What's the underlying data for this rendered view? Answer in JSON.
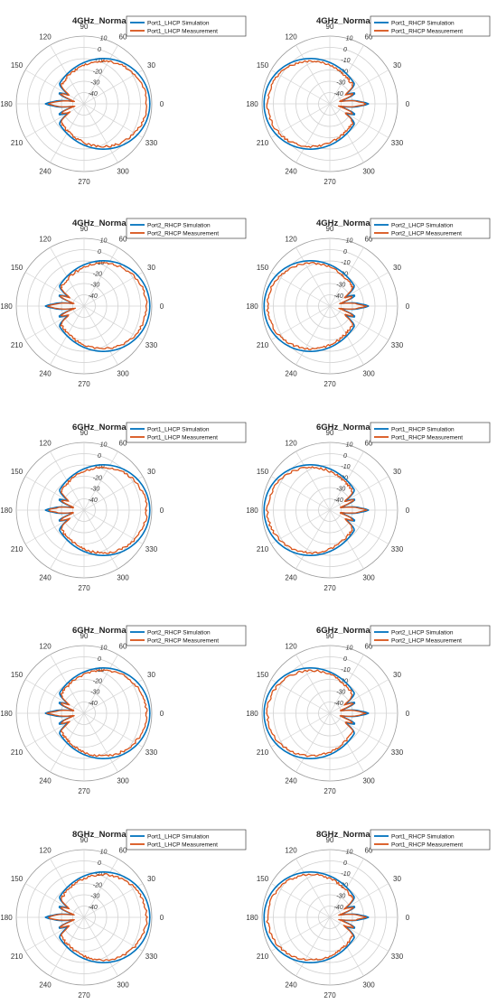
{
  "chart_data": [
    {
      "type": "polar",
      "title": "4GHz_Normalized patterns",
      "angle_ticks": [
        "90",
        "60",
        "30",
        "0",
        "330",
        "300",
        "270",
        "240",
        "210",
        "180",
        "150",
        "120"
      ],
      "r_ticks": [
        "10",
        "0",
        "-10",
        "-20",
        "-30",
        "-40"
      ],
      "rlim": [
        -50,
        10
      ],
      "series": [
        {
          "name": "Port1_LHCP Simulation",
          "color": "#0072BD",
          "shape": "right"
        },
        {
          "name": "Port1_LHCP Measurement",
          "color": "#D95319",
          "shape": "right"
        }
      ]
    },
    {
      "type": "polar",
      "title": "4GHz_Normalized patterns",
      "angle_ticks": [
        "90",
        "60",
        "30",
        "0",
        "330",
        "300",
        "270",
        "240",
        "210",
        "180",
        "150",
        "120"
      ],
      "r_ticks": [
        "10",
        "0",
        "-10",
        "-20",
        "-30",
        "-40"
      ],
      "rlim": [
        -50,
        10
      ],
      "series": [
        {
          "name": "Port1_RHCP Simulation",
          "color": "#0072BD",
          "shape": "left"
        },
        {
          "name": "Port1_RHCP Measurement",
          "color": "#D95319",
          "shape": "left"
        }
      ]
    },
    {
      "type": "polar",
      "title": "4GHz_Normalized patterns",
      "angle_ticks": [
        "90",
        "60",
        "30",
        "0",
        "330",
        "300",
        "270",
        "240",
        "210",
        "180",
        "150",
        "120"
      ],
      "r_ticks": [
        "10",
        "0",
        "-10",
        "-20",
        "-30",
        "-40"
      ],
      "rlim": [
        -50,
        10
      ],
      "series": [
        {
          "name": "Port2_RHCP Simulation",
          "color": "#0072BD",
          "shape": "right"
        },
        {
          "name": "Port2_RHCP Measurement",
          "color": "#D95319",
          "shape": "right"
        }
      ]
    },
    {
      "type": "polar",
      "title": "4GHz_Normalized patterns",
      "angle_ticks": [
        "90",
        "60",
        "30",
        "0",
        "330",
        "300",
        "270",
        "240",
        "210",
        "180",
        "150",
        "120"
      ],
      "r_ticks": [
        "10",
        "0",
        "-10",
        "-20",
        "-30",
        "-40"
      ],
      "rlim": [
        -50,
        10
      ],
      "series": [
        {
          "name": "Port2_LHCP Simulation",
          "color": "#0072BD",
          "shape": "left"
        },
        {
          "name": "Port2_LHCP Measurement",
          "color": "#D95319",
          "shape": "left"
        }
      ]
    },
    {
      "type": "polar",
      "title": "6GHz_Normalized patterns",
      "angle_ticks": [
        "90",
        "60",
        "30",
        "0",
        "330",
        "300",
        "270",
        "240",
        "210",
        "180",
        "150",
        "120"
      ],
      "r_ticks": [
        "10",
        "0",
        "-10",
        "-20",
        "-30",
        "-40"
      ],
      "rlim": [
        -50,
        10
      ],
      "series": [
        {
          "name": "Port1_LHCP Simulation",
          "color": "#0072BD",
          "shape": "right"
        },
        {
          "name": "Port1_LHCP Measurement",
          "color": "#D95319",
          "shape": "right"
        }
      ]
    },
    {
      "type": "polar",
      "title": "6GHz_Normalized patterns",
      "angle_ticks": [
        "90",
        "60",
        "30",
        "0",
        "330",
        "300",
        "270",
        "240",
        "210",
        "180",
        "150",
        "120"
      ],
      "r_ticks": [
        "10",
        "0",
        "-10",
        "-20",
        "-30",
        "-40"
      ],
      "rlim": [
        -50,
        10
      ],
      "series": [
        {
          "name": "Port1_RHCP Simulation",
          "color": "#0072BD",
          "shape": "left"
        },
        {
          "name": "Port1_RHCP Measurement",
          "color": "#D95319",
          "shape": "left"
        }
      ]
    },
    {
      "type": "polar",
      "title": "6GHz_Normalized patterns",
      "angle_ticks": [
        "90",
        "60",
        "30",
        "0",
        "330",
        "300",
        "270",
        "240",
        "210",
        "180",
        "150",
        "120"
      ],
      "r_ticks": [
        "10",
        "0",
        "-10",
        "-20",
        "-30",
        "-40"
      ],
      "rlim": [
        -50,
        10
      ],
      "series": [
        {
          "name": "Port2_RHCP Simulation",
          "color": "#0072BD",
          "shape": "right"
        },
        {
          "name": "Port2_RHCP Measurement",
          "color": "#D95319",
          "shape": "right"
        }
      ]
    },
    {
      "type": "polar",
      "title": "6GHz_Normalized patterns",
      "angle_ticks": [
        "90",
        "60",
        "30",
        "0",
        "330",
        "300",
        "270",
        "240",
        "210",
        "180",
        "150",
        "120"
      ],
      "r_ticks": [
        "10",
        "0",
        "-10",
        "-20",
        "-30",
        "-40"
      ],
      "rlim": [
        -50,
        10
      ],
      "series": [
        {
          "name": "Port2_LHCP Simulation",
          "color": "#0072BD",
          "shape": "left"
        },
        {
          "name": "Port2_LHCP Measurement",
          "color": "#D95319",
          "shape": "left"
        }
      ]
    },
    {
      "type": "polar",
      "title": "8GHz_Normalized patterns",
      "angle_ticks": [
        "90",
        "60",
        "30",
        "0",
        "330",
        "300",
        "270",
        "240",
        "210",
        "180",
        "150",
        "120"
      ],
      "r_ticks": [
        "10",
        "0",
        "-10",
        "-20",
        "-30",
        "-40"
      ],
      "rlim": [
        -50,
        10
      ],
      "series": [
        {
          "name": "Port1_LHCP Simulation",
          "color": "#0072BD",
          "shape": "right"
        },
        {
          "name": "Port1_LHCP Measurement",
          "color": "#D95319",
          "shape": "right"
        }
      ]
    },
    {
      "type": "polar",
      "title": "8GHz_Normalized patterns",
      "angle_ticks": [
        "90",
        "60",
        "30",
        "0",
        "330",
        "300",
        "270",
        "240",
        "210",
        "180",
        "150",
        "120"
      ],
      "r_ticks": [
        "10",
        "0",
        "-10",
        "-20",
        "-30",
        "-40"
      ],
      "rlim": [
        -50,
        10
      ],
      "series": [
        {
          "name": "Port1_RHCP Simulation",
          "color": "#0072BD",
          "shape": "left"
        },
        {
          "name": "Port1_RHCP Measurement",
          "color": "#D95319",
          "shape": "left"
        }
      ]
    }
  ]
}
